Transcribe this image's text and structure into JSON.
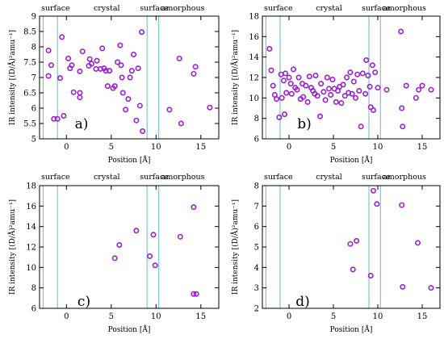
{
  "chart_data": [
    {
      "type": "scatter",
      "panel_label": "a)",
      "xlabel": "Position [Å]",
      "ylabel": "IR intensity [(D/Å)²amu⁻¹]",
      "xlim": [
        -3,
        17
      ],
      "ylim": [
        5,
        9
      ],
      "xticks": [
        0,
        5,
        10,
        15
      ],
      "yticks": [
        5,
        5.5,
        6,
        6.5,
        7,
        7.5,
        8,
        8.5,
        9
      ],
      "ytick_labels": [
        "5",
        "5.5",
        "6",
        "6.5",
        "7",
        "7.5",
        "8",
        "8.5",
        "9"
      ],
      "region_labels": [
        {
          "text": "surface",
          "x": -2.4
        },
        {
          "text": "crystal",
          "x": 4.5
        },
        {
          "text": "surface",
          "x": 9.8
        },
        {
          "text": "amorphous",
          "x": 13.0
        }
      ],
      "vlines": [
        -2.6,
        -1.0,
        9.0,
        10.3
      ],
      "marker_color": "#9b1fd1",
      "points": [
        [
          -2.0,
          7.05
        ],
        [
          -2.0,
          7.88
        ],
        [
          -1.7,
          7.4
        ],
        [
          -1.4,
          5.65
        ],
        [
          -1.0,
          5.65
        ],
        [
          -0.7,
          6.98
        ],
        [
          -0.5,
          8.32
        ],
        [
          -0.3,
          5.75
        ],
        [
          0.2,
          7.62
        ],
        [
          0.4,
          7.3
        ],
        [
          0.6,
          7.4
        ],
        [
          0.8,
          6.52
        ],
        [
          1.5,
          6.35
        ],
        [
          1.5,
          6.5
        ],
        [
          1.5,
          7.2
        ],
        [
          1.8,
          7.85
        ],
        [
          2.5,
          7.38
        ],
        [
          2.6,
          7.6
        ],
        [
          2.8,
          7.45
        ],
        [
          3.3,
          7.28
        ],
        [
          3.4,
          7.55
        ],
        [
          3.8,
          7.28
        ],
        [
          4.0,
          7.95
        ],
        [
          4.2,
          7.3
        ],
        [
          4.4,
          7.22
        ],
        [
          4.6,
          6.72
        ],
        [
          4.8,
          7.22
        ],
        [
          5.2,
          6.65
        ],
        [
          5.4,
          6.72
        ],
        [
          5.7,
          7.5
        ],
        [
          6.0,
          8.05
        ],
        [
          6.1,
          7.4
        ],
        [
          6.2,
          7.0
        ],
        [
          6.3,
          6.5
        ],
        [
          6.6,
          5.95
        ],
        [
          6.9,
          6.3
        ],
        [
          7.1,
          7.0
        ],
        [
          7.3,
          7.22
        ],
        [
          7.5,
          7.75
        ],
        [
          7.8,
          5.6
        ],
        [
          8.0,
          7.3
        ],
        [
          8.2,
          6.08
        ],
        [
          8.4,
          8.48
        ],
        [
          8.5,
          5.25
        ],
        [
          11.5,
          5.95
        ],
        [
          12.6,
          7.62
        ],
        [
          12.8,
          5.5
        ],
        [
          14.2,
          7.12
        ],
        [
          14.4,
          7.35
        ],
        [
          16.0,
          6.02
        ]
      ]
    },
    {
      "type": "scatter",
      "panel_label": "b)",
      "xlabel": "Position [Å]",
      "ylabel": "IR intensity [(D/Å)²amu⁻¹]",
      "xlim": [
        -3,
        17
      ],
      "ylim": [
        6,
        18
      ],
      "xticks": [
        0,
        5,
        10,
        15
      ],
      "yticks": [
        6,
        8,
        10,
        12,
        14,
        16,
        18
      ],
      "ytick_labels": [
        "6",
        "8",
        "10",
        "12",
        "14",
        "16",
        "18"
      ],
      "region_labels": [
        {
          "text": "surface",
          "x": -2.4
        },
        {
          "text": "crystal",
          "x": 4.5
        },
        {
          "text": "surface",
          "x": 9.8
        },
        {
          "text": "amorphous",
          "x": 13.0
        }
      ],
      "vlines": [
        -2.6,
        -1.0,
        9.0,
        10.3
      ],
      "marker_color": "#9b1fd1",
      "points": [
        [
          -2.2,
          14.8
        ],
        [
          -2.0,
          12.7
        ],
        [
          -1.8,
          11.2
        ],
        [
          -1.6,
          10.3
        ],
        [
          -1.4,
          9.9
        ],
        [
          -1.1,
          8.1
        ],
        [
          -0.9,
          12.3
        ],
        [
          -0.8,
          10.0
        ],
        [
          -0.6,
          11.7
        ],
        [
          -0.5,
          8.4
        ],
        [
          -0.4,
          12.4
        ],
        [
          -0.3,
          10.5
        ],
        [
          0.0,
          12.0
        ],
        [
          0.2,
          11.4
        ],
        [
          0.3,
          10.4
        ],
        [
          0.5,
          12.8
        ],
        [
          0.7,
          11.0
        ],
        [
          0.9,
          10.8
        ],
        [
          1.1,
          12.0
        ],
        [
          1.3,
          9.9
        ],
        [
          1.5,
          11.4
        ],
        [
          1.6,
          10.1
        ],
        [
          1.9,
          11.2
        ],
        [
          2.1,
          9.6
        ],
        [
          2.3,
          12.1
        ],
        [
          2.5,
          11.0
        ],
        [
          2.7,
          10.7
        ],
        [
          2.9,
          10.4
        ],
        [
          3.0,
          12.2
        ],
        [
          3.2,
          10.2
        ],
        [
          3.5,
          8.2
        ],
        [
          3.6,
          11.4
        ],
        [
          3.9,
          10.6
        ],
        [
          4.1,
          9.8
        ],
        [
          4.3,
          12.0
        ],
        [
          4.5,
          10.9
        ],
        [
          4.7,
          10.3
        ],
        [
          4.9,
          11.8
        ],
        [
          5.1,
          10.9
        ],
        [
          5.3,
          9.6
        ],
        [
          5.5,
          10.7
        ],
        [
          5.7,
          11.1
        ],
        [
          5.9,
          9.5
        ],
        [
          6.1,
          11.3
        ],
        [
          6.3,
          10.2
        ],
        [
          6.5,
          12.0
        ],
        [
          6.7,
          10.5
        ],
        [
          6.9,
          12.5
        ],
        [
          7.1,
          10.4
        ],
        [
          7.3,
          11.6
        ],
        [
          7.5,
          10.0
        ],
        [
          7.7,
          12.3
        ],
        [
          7.9,
          10.7
        ],
        [
          8.1,
          7.2
        ],
        [
          8.3,
          12.4
        ],
        [
          8.6,
          10.4
        ],
        [
          8.7,
          13.7
        ],
        [
          8.9,
          12.2
        ],
        [
          9.1,
          11.1
        ],
        [
          9.2,
          9.1
        ],
        [
          9.4,
          13.2
        ],
        [
          9.5,
          8.8
        ],
        [
          9.7,
          12.5
        ],
        [
          10.0,
          11.0
        ],
        [
          11.0,
          10.8
        ],
        [
          12.6,
          16.5
        ],
        [
          12.7,
          9.0
        ],
        [
          12.8,
          7.2
        ],
        [
          13.2,
          11.2
        ],
        [
          14.3,
          10.0
        ],
        [
          14.6,
          10.8
        ],
        [
          15.0,
          11.2
        ],
        [
          16.0,
          10.8
        ]
      ]
    },
    {
      "type": "scatter",
      "panel_label": "c)",
      "xlabel": "Position [Å]",
      "ylabel": "IR intensity [(D/Å)²amu⁻¹]",
      "xlim": [
        -3,
        17
      ],
      "ylim": [
        6,
        18
      ],
      "xticks": [
        0,
        5,
        10,
        15
      ],
      "yticks": [
        6,
        8,
        10,
        12,
        14,
        16,
        18
      ],
      "ytick_labels": [
        "6",
        "8",
        "10",
        "12",
        "14",
        "16",
        "18"
      ],
      "region_labels": [
        {
          "text": "surface",
          "x": -2.4
        },
        {
          "text": "crystal",
          "x": 4.5
        },
        {
          "text": "surface",
          "x": 9.8
        },
        {
          "text": "amorphous",
          "x": 13.0
        }
      ],
      "vlines": [
        -2.6,
        -1.0,
        9.0,
        10.3
      ],
      "marker_color": "#9b1fd1",
      "points": [
        [
          5.4,
          10.9
        ],
        [
          5.9,
          12.2
        ],
        [
          7.8,
          13.6
        ],
        [
          9.3,
          11.1
        ],
        [
          9.7,
          13.2
        ],
        [
          9.9,
          10.2
        ],
        [
          12.7,
          13.0
        ],
        [
          14.2,
          15.9
        ],
        [
          14.2,
          7.4
        ],
        [
          14.5,
          7.4
        ]
      ]
    },
    {
      "type": "scatter",
      "panel_label": "d)",
      "xlabel": "Position [Å]",
      "ylabel": "IR intensity [(D/Å)²amu⁻¹]",
      "xlim": [
        -3,
        17
      ],
      "ylim": [
        2,
        8
      ],
      "xticks": [
        0,
        5,
        10,
        15
      ],
      "yticks": [
        2,
        3,
        4,
        5,
        6,
        7,
        8
      ],
      "ytick_labels": [
        "2",
        "3",
        "4",
        "5",
        "6",
        "7",
        "8"
      ],
      "region_labels": [
        {
          "text": "surface",
          "x": -2.4
        },
        {
          "text": "crystal",
          "x": 4.5
        },
        {
          "text": "surface",
          "x": 9.8
        },
        {
          "text": "amorphous",
          "x": 13.0
        }
      ],
      "vlines": [
        -2.6,
        -1.0,
        9.0,
        10.3
      ],
      "marker_color": "#9b1fd1",
      "points": [
        [
          6.9,
          5.15
        ],
        [
          7.2,
          3.9
        ],
        [
          7.6,
          5.3
        ],
        [
          9.2,
          3.6
        ],
        [
          9.5,
          7.75
        ],
        [
          9.9,
          7.1
        ],
        [
          12.7,
          7.05
        ],
        [
          12.8,
          3.05
        ],
        [
          14.5,
          5.2
        ],
        [
          16.0,
          3.0
        ]
      ]
    }
  ]
}
